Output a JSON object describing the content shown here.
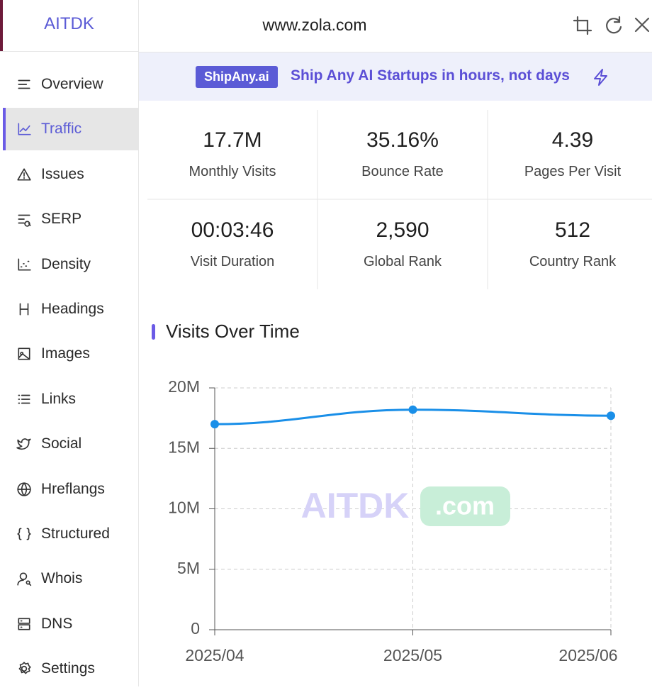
{
  "sidebar": {
    "brand": "AITDK",
    "active_index": 1,
    "items": [
      "Overview",
      "Traffic",
      "Issues",
      "SERP",
      "Density",
      "Headings",
      "Images",
      "Links",
      "Social",
      "Hreflangs",
      "Structured",
      "Whois",
      "DNS",
      "Settings"
    ]
  },
  "header": {
    "url": "www.zola.com"
  },
  "banner": {
    "badge": "ShipAny.ai",
    "text": "Ship Any AI Startups in hours, not days"
  },
  "stats": [
    {
      "value": "17.7M",
      "label": "Monthly Visits"
    },
    {
      "value": "35.16%",
      "label": "Bounce Rate"
    },
    {
      "value": "4.39",
      "label": "Pages Per Visit"
    },
    {
      "value": "00:03:46",
      "label": "Visit Duration"
    },
    {
      "value": "2,590",
      "label": "Global Rank"
    },
    {
      "value": "512",
      "label": "Country Rank"
    }
  ],
  "chart_data": {
    "type": "line",
    "title": "Visits Over Time",
    "categories": [
      "2025/04",
      "2025/05",
      "2025/06"
    ],
    "values": [
      17000000,
      18200000,
      17700000
    ],
    "color": "#1a8fe8",
    "ylim": [
      0,
      20000000
    ],
    "yticks": [
      0,
      {
        "value": 5000000,
        "label": "5M"
      },
      {
        "value": 10000000,
        "label": "10M"
      },
      {
        "value": 15000000,
        "label": "15M"
      },
      {
        "value": 20000000,
        "label": "20M"
      }
    ],
    "grid": true,
    "watermark": {
      "brand": "AITDK",
      "suffix": ".com"
    }
  }
}
